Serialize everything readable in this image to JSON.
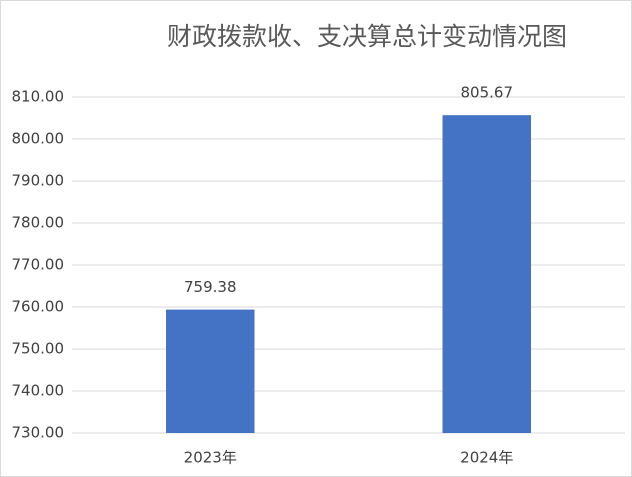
{
  "chart_data": {
    "type": "bar",
    "title": "财政拨款收、支决算总计变动情况图",
    "categories": [
      "2023年",
      "2024年"
    ],
    "values": [
      759.38,
      805.67
    ],
    "color": "#4472c4",
    "ylim": [
      730,
      810
    ],
    "yticks": [
      {
        "value": 730,
        "label": "730.00"
      },
      {
        "value": 740,
        "label": "740.00"
      },
      {
        "value": 750,
        "label": "750.00"
      },
      {
        "value": 760,
        "label": "760.00"
      },
      {
        "value": 770,
        "label": "770.00"
      },
      {
        "value": 780,
        "label": "780.00"
      },
      {
        "value": 790,
        "label": "790.00"
      },
      {
        "value": 800,
        "label": "800.00"
      },
      {
        "value": 810,
        "label": "810.00"
      }
    ],
    "grid": true
  }
}
